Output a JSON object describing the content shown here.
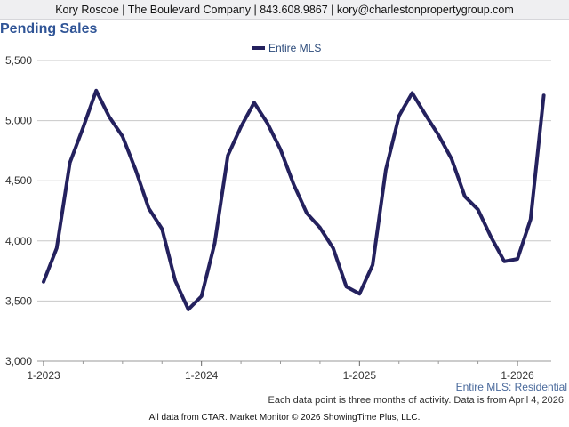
{
  "header": {
    "contact": "Kory Roscoe | The Boulevard Company | 843.608.9867 | kory@charlestonpropertygroup.com"
  },
  "subtitle": "Entire MLS: Residential",
  "note": "Each data point is three months of activity. Data is from April 4, 2026.",
  "footer": "All data from CTAR. Market Monitor © 2026 ShowingTime Plus, LLC.",
  "colors": {
    "series": "#24215e",
    "title": "#2f5496",
    "grid": "#c8c8c8"
  },
  "chart_data": {
    "type": "line",
    "title": "Pending Sales",
    "legend_position": "top",
    "grid": true,
    "ylim": [
      3000,
      5500
    ],
    "yticks": [
      "3,000",
      "3,500",
      "4,000",
      "4,500",
      "5,000",
      "5,500"
    ],
    "ytick_values": [
      3000,
      3500,
      4000,
      4500,
      5000,
      5500
    ],
    "xticks": [
      "1-2023",
      "1-2024",
      "1-2025",
      "1-2026"
    ],
    "x_start": "1-2023",
    "x": [
      "1-2023",
      "2-2023",
      "3-2023",
      "4-2023",
      "5-2023",
      "6-2023",
      "7-2023",
      "8-2023",
      "9-2023",
      "10-2023",
      "11-2023",
      "12-2023",
      "1-2024",
      "2-2024",
      "3-2024",
      "4-2024",
      "5-2024",
      "6-2024",
      "7-2024",
      "8-2024",
      "9-2024",
      "10-2024",
      "11-2024",
      "12-2024",
      "1-2025",
      "2-2025",
      "3-2025",
      "4-2025",
      "5-2025",
      "6-2025",
      "7-2025",
      "8-2025",
      "9-2025",
      "10-2025",
      "11-2025",
      "12-2025",
      "1-2026",
      "2-2026",
      "3-2026"
    ],
    "series": [
      {
        "name": "Entire MLS",
        "values": [
          3660,
          3940,
          4650,
          4940,
          5250,
          5030,
          4870,
          4590,
          4270,
          4100,
          3670,
          3430,
          3540,
          3980,
          4710,
          4950,
          5150,
          4980,
          4760,
          4470,
          4230,
          4110,
          3940,
          3620,
          3560,
          3800,
          4590,
          5040,
          5230,
          5050,
          4880,
          4680,
          4370,
          4260,
          4030,
          3830,
          3850,
          4180,
          5210
        ]
      }
    ]
  }
}
